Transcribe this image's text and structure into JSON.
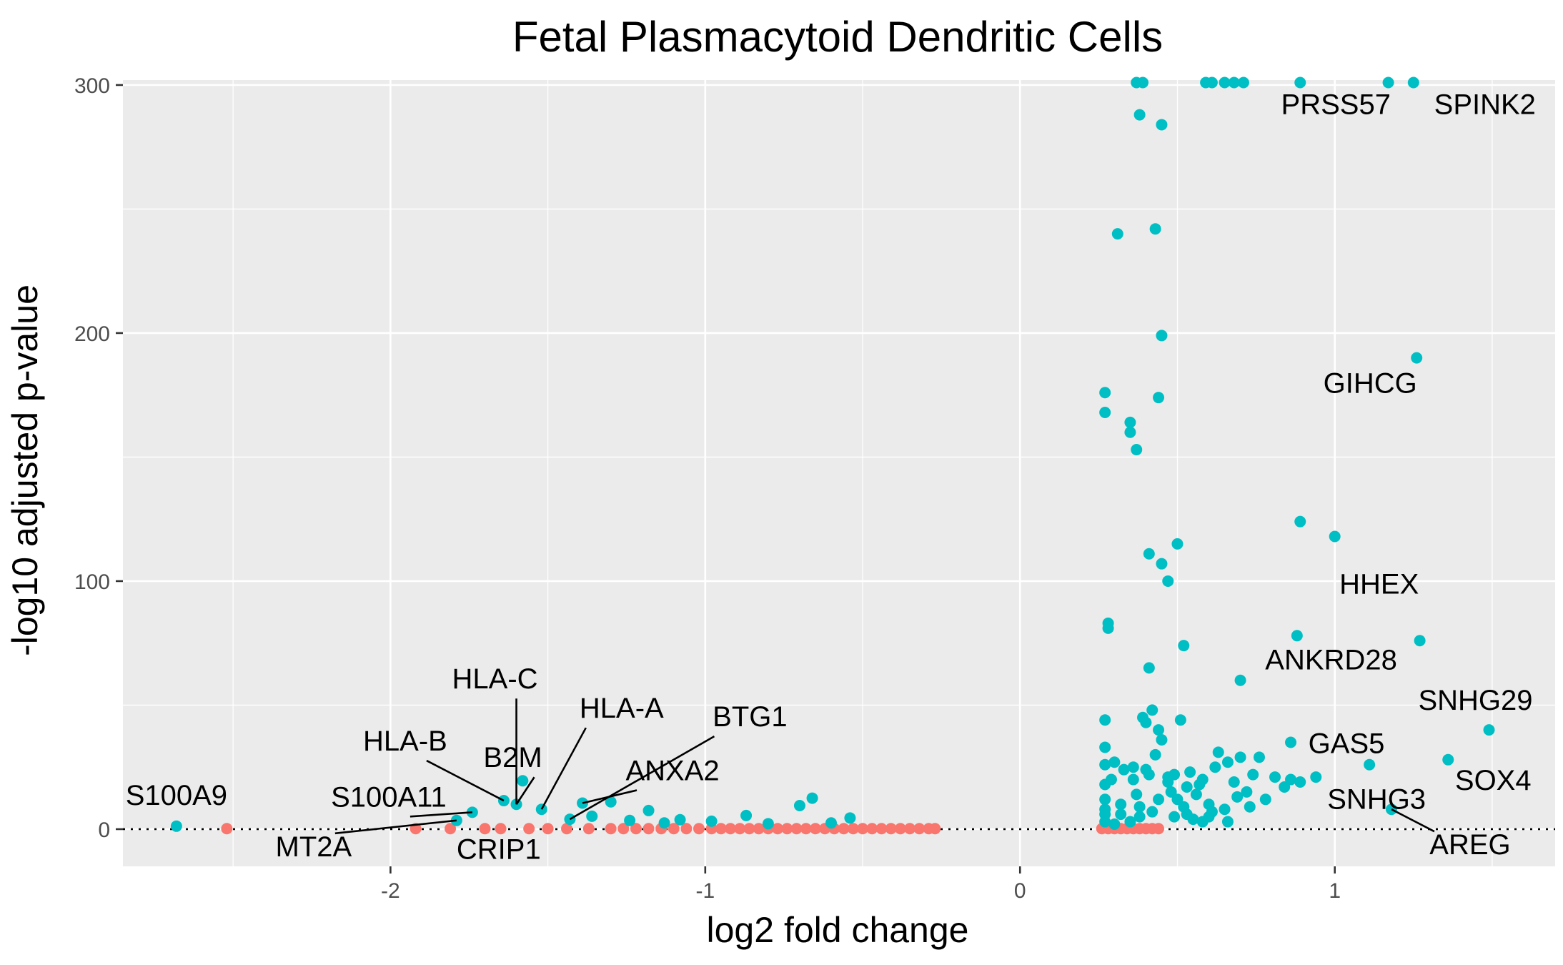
{
  "chart_data": {
    "type": "scatter",
    "title": "Fetal Plasmacytoid Dendritic Cells",
    "xlabel": "log2 fold change",
    "ylabel": "-log10 adjusted p-value",
    "xlim": [
      -2.85,
      1.7
    ],
    "ylim": [
      -15,
      302
    ],
    "x_ticks": [
      -2,
      -1,
      0,
      1
    ],
    "x_tick_labels": [
      "-2",
      "-1",
      "0",
      "1"
    ],
    "y_ticks": [
      0,
      100,
      200,
      300
    ],
    "y_tick_labels": [
      "0",
      "100",
      "200",
      "300"
    ],
    "grid": true,
    "legend": "none",
    "reference_line": {
      "y": 0,
      "style": "dotted"
    },
    "colors": {
      "significant": "#00BFC4",
      "not_significant": "#F8766D",
      "panel": "#EBEBEB"
    },
    "series": [
      {
        "key": "significant",
        "color": "#00BFC4",
        "points": [
          [
            -2.68,
            1.2
          ],
          [
            -1.79,
            3.5
          ],
          [
            -1.74,
            6.8
          ],
          [
            -1.64,
            11.5
          ],
          [
            -1.6,
            10
          ],
          [
            -1.58,
            19.5
          ],
          [
            -1.52,
            8
          ],
          [
            -1.43,
            4
          ],
          [
            -1.39,
            10.5
          ],
          [
            -1.36,
            5.2
          ],
          [
            -1.3,
            11
          ],
          [
            -1.24,
            3.5
          ],
          [
            -1.18,
            7.5
          ],
          [
            -1.13,
            2.5
          ],
          [
            -1.08,
            3.8
          ],
          [
            -0.98,
            3.2
          ],
          [
            -0.87,
            5.5
          ],
          [
            -0.8,
            2.2
          ],
          [
            -0.7,
            9.5
          ],
          [
            -0.66,
            12.5
          ],
          [
            -0.6,
            2.5
          ],
          [
            -0.54,
            4.5
          ],
          [
            0.27,
            44
          ],
          [
            0.27,
            33
          ],
          [
            0.27,
            26
          ],
          [
            0.27,
            18
          ],
          [
            0.27,
            12
          ],
          [
            0.27,
            8
          ],
          [
            0.27,
            6
          ],
          [
            0.27,
            3
          ],
          [
            0.28,
            81
          ],
          [
            0.28,
            83
          ],
          [
            0.29,
            20
          ],
          [
            0.3,
            27
          ],
          [
            0.32,
            10
          ],
          [
            0.33,
            24
          ],
          [
            0.36,
            20
          ],
          [
            0.37,
            14
          ],
          [
            0.38,
            5
          ],
          [
            0.39,
            45
          ],
          [
            0.4,
            24
          ],
          [
            0.4,
            43
          ],
          [
            0.41,
            65
          ],
          [
            0.42,
            48
          ],
          [
            0.43,
            30
          ],
          [
            0.44,
            40
          ],
          [
            0.45,
            36
          ],
          [
            0.47,
            19
          ],
          [
            0.48,
            15
          ],
          [
            0.49,
            22
          ],
          [
            0.5,
            12
          ],
          [
            0.51,
            44
          ],
          [
            0.53,
            17
          ],
          [
            0.54,
            23
          ],
          [
            0.56,
            14
          ],
          [
            0.58,
            20
          ],
          [
            0.6,
            10
          ],
          [
            0.62,
            25
          ],
          [
            0.63,
            31
          ],
          [
            0.65,
            8
          ],
          [
            0.66,
            27
          ],
          [
            0.68,
            19
          ],
          [
            0.7,
            29
          ],
          [
            0.72,
            15
          ],
          [
            0.74,
            22
          ],
          [
            0.76,
            29
          ],
          [
            0.78,
            12
          ],
          [
            0.81,
            21
          ],
          [
            0.84,
            17
          ],
          [
            0.86,
            20
          ],
          [
            0.89,
            19
          ],
          [
            0.94,
            21
          ],
          [
            0.36,
            25
          ],
          [
            0.41,
            22
          ],
          [
            0.47,
            21
          ],
          [
            0.52,
            9
          ],
          [
            0.57,
            18
          ],
          [
            0.61,
            7
          ],
          [
            0.69,
            13
          ],
          [
            0.73,
            9
          ],
          [
            0.32,
            6
          ],
          [
            0.38,
            9
          ],
          [
            0.44,
            12
          ],
          [
            0.55,
            4
          ],
          [
            0.6,
            5
          ],
          [
            0.66,
            3
          ],
          [
            0.3,
            2
          ],
          [
            0.35,
            3
          ],
          [
            0.42,
            7
          ],
          [
            0.49,
            5
          ],
          [
            0.53,
            6
          ],
          [
            0.58,
            3
          ],
          [
            0.37,
            301
          ],
          [
            0.39,
            301
          ],
          [
            0.59,
            301
          ],
          [
            0.61,
            301
          ],
          [
            0.65,
            301
          ],
          [
            0.68,
            301
          ],
          [
            0.71,
            301
          ],
          [
            0.89,
            301
          ],
          [
            1.17,
            301
          ],
          [
            1.25,
            301
          ],
          [
            0.38,
            288
          ],
          [
            0.45,
            284
          ],
          [
            0.31,
            240
          ],
          [
            0.43,
            242
          ],
          [
            0.45,
            199
          ],
          [
            0.27,
            176
          ],
          [
            0.44,
            174
          ],
          [
            0.27,
            168
          ],
          [
            0.35,
            164
          ],
          [
            0.35,
            160
          ],
          [
            0.37,
            153
          ],
          [
            0.41,
            111
          ],
          [
            0.5,
            115
          ],
          [
            0.45,
            107
          ],
          [
            0.47,
            100
          ],
          [
            0.52,
            74
          ],
          [
            0.7,
            60
          ],
          [
            0.88,
            78
          ],
          [
            0.89,
            124
          ],
          [
            1.0,
            118
          ],
          [
            1.26,
            190
          ],
          [
            1.27,
            76
          ],
          [
            1.49,
            40
          ],
          [
            1.36,
            28
          ],
          [
            1.11,
            26
          ],
          [
            0.86,
            35
          ],
          [
            1.18,
            8
          ]
        ]
      },
      {
        "key": "not_significant",
        "color": "#F8766D",
        "points": [
          [
            -2.52,
            0.2
          ],
          [
            -1.92,
            0.2
          ],
          [
            -1.81,
            0.2
          ],
          [
            -1.7,
            0.2
          ],
          [
            -1.65,
            0.2
          ],
          [
            -1.56,
            0.2
          ],
          [
            -1.5,
            0.2
          ],
          [
            -1.44,
            0.2
          ],
          [
            -1.37,
            0.2
          ],
          [
            -1.3,
            0.2
          ],
          [
            -1.26,
            0.2
          ],
          [
            -1.22,
            0.2
          ],
          [
            -1.18,
            0.2
          ],
          [
            -1.14,
            0.2
          ],
          [
            -1.1,
            0.2
          ],
          [
            -1.06,
            0.2
          ],
          [
            -1.02,
            0.2
          ],
          [
            -0.98,
            0.2
          ],
          [
            -0.95,
            0.2
          ],
          [
            -0.92,
            0.2
          ],
          [
            -0.89,
            0.2
          ],
          [
            -0.86,
            0.2
          ],
          [
            -0.83,
            0.2
          ],
          [
            -0.8,
            0.2
          ],
          [
            -0.77,
            0.2
          ],
          [
            -0.74,
            0.2
          ],
          [
            -0.71,
            0.2
          ],
          [
            -0.68,
            0.2
          ],
          [
            -0.65,
            0.2
          ],
          [
            -0.62,
            0.2
          ],
          [
            -0.59,
            0.2
          ],
          [
            -0.56,
            0.2
          ],
          [
            -0.53,
            0.2
          ],
          [
            -0.5,
            0.2
          ],
          [
            -0.47,
            0.2
          ],
          [
            -0.44,
            0.2
          ],
          [
            -0.41,
            0.2
          ],
          [
            -0.38,
            0.2
          ],
          [
            -0.35,
            0.2
          ],
          [
            -0.32,
            0.2
          ],
          [
            -0.29,
            0.2
          ],
          [
            -0.27,
            0.2
          ],
          [
            0.26,
            0.2
          ],
          [
            0.28,
            0.2
          ],
          [
            0.3,
            0.2
          ],
          [
            0.32,
            0.2
          ],
          [
            0.34,
            0.2
          ],
          [
            0.36,
            0.2
          ],
          [
            0.38,
            0.2
          ],
          [
            0.4,
            0.2
          ],
          [
            0.42,
            0.2
          ],
          [
            0.44,
            0.2
          ]
        ]
      }
    ],
    "annotations": [
      {
        "text": "S100A9",
        "x": -2.68,
        "y": 1.2
      },
      {
        "text": "MT2A",
        "x": -1.79,
        "y": 3.5
      },
      {
        "text": "S100A11",
        "x": -1.74,
        "y": 6.8
      },
      {
        "text": "HLA-B",
        "x": -1.64,
        "y": 11.5
      },
      {
        "text": "HLA-C",
        "x": -1.6,
        "y": 10
      },
      {
        "text": "B2M",
        "x": -1.6,
        "y": 10
      },
      {
        "text": "CRIP1",
        "x": -1.52,
        "y": 0.2
      },
      {
        "text": "HLA-A",
        "x": -1.52,
        "y": 8
      },
      {
        "text": "BTG1",
        "x": -1.43,
        "y": 4
      },
      {
        "text": "ANXA2",
        "x": -1.39,
        "y": 10.5
      },
      {
        "text": "PRSS57",
        "x": 0.89,
        "y": 301
      },
      {
        "text": "SPINK2",
        "x": 1.25,
        "y": 301
      },
      {
        "text": "GIHCG",
        "x": 1.26,
        "y": 190
      },
      {
        "text": "HHEX",
        "x": 1.0,
        "y": 118
      },
      {
        "text": "ANKRD28",
        "x": 0.7,
        "y": 60
      },
      {
        "text": "SNHG29",
        "x": 1.49,
        "y": 40
      },
      {
        "text": "GAS5",
        "x": 0.86,
        "y": 35
      },
      {
        "text": "SOX4",
        "x": 1.36,
        "y": 28
      },
      {
        "text": "SNHG3",
        "x": 1.11,
        "y": 26
      },
      {
        "text": "AREG",
        "x": 1.18,
        "y": 8
      }
    ]
  }
}
